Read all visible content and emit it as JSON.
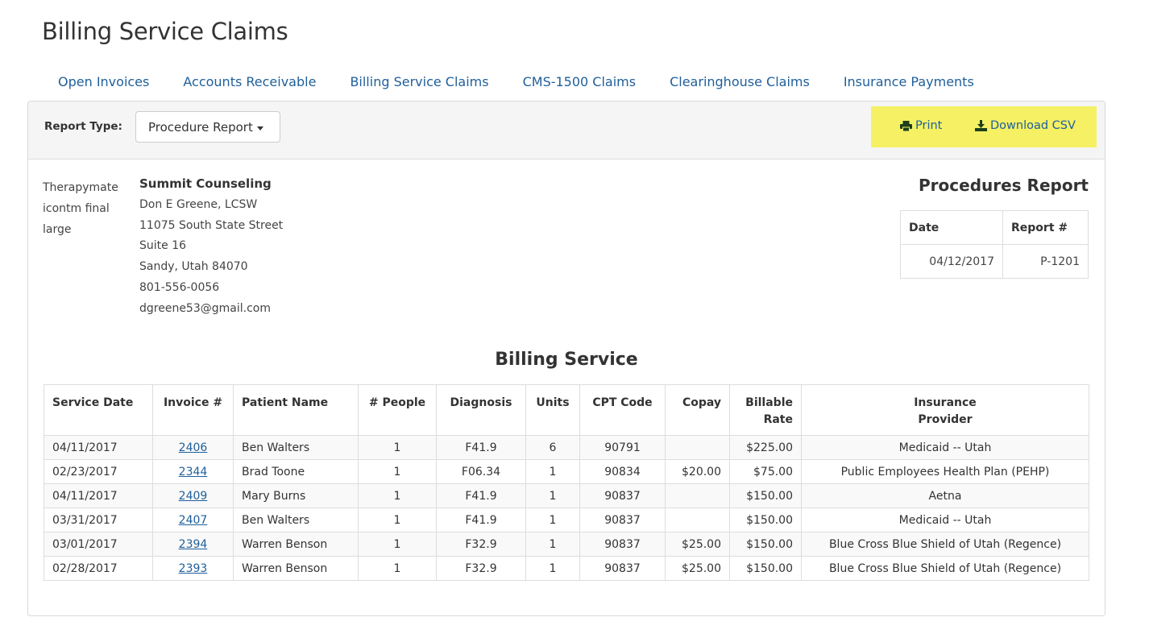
{
  "page_title": "Billing Service Claims",
  "tabs": [
    {
      "label": "Open Invoices"
    },
    {
      "label": "Accounts Receivable"
    },
    {
      "label": "Billing Service Claims"
    },
    {
      "label": "CMS-1500 Claims"
    },
    {
      "label": "Clearinghouse Claims"
    },
    {
      "label": "Insurance Payments"
    }
  ],
  "toolbar": {
    "report_type_label": "Report Type:",
    "report_type_value": "Procedure Report",
    "print_label": "Print",
    "download_label": "Download CSV",
    "highlight_color": "#f5f064"
  },
  "practice": {
    "logo_alt": "Therapymate icontm final large",
    "name": "Summit Counseling",
    "provider": "Don E Greene, LCSW",
    "address1": "11075 South State Street",
    "address2": "Suite 16",
    "city_state": "Sandy, Utah 84070",
    "phone": "801-556-0056",
    "email": "dgreene53@gmail.com"
  },
  "report": {
    "heading": "Procedures Report",
    "date_header": "Date",
    "number_header": "Report #",
    "date": "04/12/2017",
    "number": "P-1201"
  },
  "billing": {
    "heading": "Billing Service",
    "columns": {
      "service_date": "Service Date",
      "invoice": "Invoice #",
      "patient": "Patient Name",
      "people": "# People",
      "diagnosis": "Diagnosis",
      "units": "Units",
      "cpt": "CPT Code",
      "copay": "Copay",
      "rate_line1": "Billable",
      "rate_line2": "Rate",
      "insurance_line1": "Insurance",
      "insurance_line2": "Provider"
    },
    "rows": [
      {
        "service_date": "04/11/2017",
        "invoice": "2406",
        "patient": "Ben Walters",
        "people": "1",
        "diagnosis": "F41.9",
        "units": "6",
        "cpt": "90791",
        "copay": "",
        "rate": "$225.00",
        "insurance": "Medicaid -- Utah"
      },
      {
        "service_date": "02/23/2017",
        "invoice": "2344",
        "patient": "Brad Toone",
        "people": "1",
        "diagnosis": "F06.34",
        "units": "1",
        "cpt": "90834",
        "copay": "$20.00",
        "rate": "$75.00",
        "insurance": "Public Employees Health Plan (PEHP)"
      },
      {
        "service_date": "04/11/2017",
        "invoice": "2409",
        "patient": "Mary Burns",
        "people": "1",
        "diagnosis": "F41.9",
        "units": "1",
        "cpt": "90837",
        "copay": "",
        "rate": "$150.00",
        "insurance": "Aetna"
      },
      {
        "service_date": "03/31/2017",
        "invoice": "2407",
        "patient": "Ben Walters",
        "people": "1",
        "diagnosis": "F41.9",
        "units": "1",
        "cpt": "90837",
        "copay": "",
        "rate": "$150.00",
        "insurance": "Medicaid -- Utah"
      },
      {
        "service_date": "03/01/2017",
        "invoice": "2394",
        "patient": "Warren Benson",
        "people": "1",
        "diagnosis": "F32.9",
        "units": "1",
        "cpt": "90837",
        "copay": "$25.00",
        "rate": "$150.00",
        "insurance": "Blue Cross Blue Shield of Utah (Regence)"
      },
      {
        "service_date": "02/28/2017",
        "invoice": "2393",
        "patient": "Warren Benson",
        "people": "1",
        "diagnosis": "F32.9",
        "units": "1",
        "cpt": "90837",
        "copay": "$25.00",
        "rate": "$150.00",
        "insurance": "Blue Cross Blue Shield of Utah (Regence)"
      }
    ]
  }
}
